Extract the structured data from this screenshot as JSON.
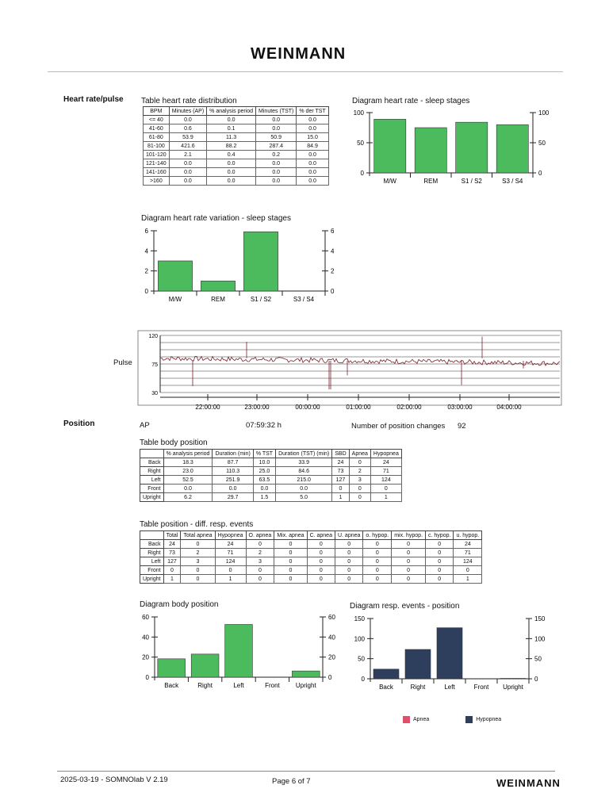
{
  "header": {
    "logo": "WEINMANN"
  },
  "footer": {
    "left": "2025-03-19 - SOMNOlab V 2.19",
    "center": "Page 6 of 7",
    "logo": "WEINMANN"
  },
  "sections": {
    "heart_rate": "Heart rate/pulse",
    "pulse": "Pulse",
    "position": "Position"
  },
  "hr_table": {
    "title": "Table heart rate distribution",
    "headers": [
      "BPM",
      "Minutes (AP)",
      "% analysis period",
      "Minutes (TST)",
      "% der TST"
    ],
    "rows": [
      [
        "<= 40",
        "0.0",
        "0.0",
        "0.0",
        "0.0"
      ],
      [
        "41-60",
        "0.6",
        "0.1",
        "0.0",
        "0.0"
      ],
      [
        "61-80",
        "53.9",
        "11.3",
        "50.9",
        "15.0"
      ],
      [
        "81-100",
        "421.6",
        "88.2",
        "287.4",
        "84.9"
      ],
      [
        "101-120",
        "2.1",
        "0.4",
        "0.2",
        "0.0"
      ],
      [
        "121-140",
        "0.0",
        "0.0",
        "0.0",
        "0.0"
      ],
      [
        "141-160",
        "0.0",
        "0.0",
        "0.0",
        "0.0"
      ],
      [
        ">160",
        "0.0",
        "0.0",
        "0.0",
        "0.0"
      ]
    ]
  },
  "position_info": {
    "ap_label": "AP",
    "ap_value": "07:59:32 h",
    "changes_label": "Number of position changes",
    "changes_value": "92"
  },
  "body_table": {
    "title": "Table body position",
    "headers": [
      "",
      "% analysis period",
      "Duration (min)",
      "% TST",
      "Duration (TST) (min)",
      "SBD",
      "Apnea",
      "Hypopnea"
    ],
    "rows": [
      [
        "Back",
        "18.3",
        "87.7",
        "10.0",
        "33.9",
        "24",
        "0",
        "24"
      ],
      [
        "Right",
        "23.0",
        "110.3",
        "25.0",
        "84.6",
        "73",
        "2",
        "71"
      ],
      [
        "Left",
        "52.5",
        "251.9",
        "63.5",
        "215.0",
        "127",
        "3",
        "124"
      ],
      [
        "Front",
        "0.0",
        "0.0",
        "0.0",
        "0.0",
        "0",
        "0",
        "0"
      ],
      [
        "Upright",
        "6.2",
        "29.7",
        "1.5",
        "5.0",
        "1",
        "0",
        "1"
      ]
    ]
  },
  "resp_table": {
    "title": "Table position - diff. resp. events",
    "headers": [
      "",
      "Total",
      "Total apnea",
      "Hypopnea",
      "O. apnea",
      "Mix. apnea",
      "C. apnea",
      "U. apnea",
      "o. hypop.",
      "mix. hypop.",
      "c. hypop.",
      "u. hypop."
    ],
    "rows": [
      [
        "Back",
        "24",
        "0",
        "24",
        "0",
        "0",
        "0",
        "0",
        "0",
        "0",
        "0",
        "24"
      ],
      [
        "Right",
        "73",
        "2",
        "71",
        "2",
        "0",
        "0",
        "0",
        "0",
        "0",
        "0",
        "71"
      ],
      [
        "Left",
        "127",
        "3",
        "124",
        "3",
        "0",
        "0",
        "0",
        "0",
        "0",
        "0",
        "124"
      ],
      [
        "Front",
        "0",
        "0",
        "0",
        "0",
        "0",
        "0",
        "0",
        "0",
        "0",
        "0",
        "0"
      ],
      [
        "Upright",
        "1",
        "0",
        "1",
        "0",
        "0",
        "0",
        "0",
        "0",
        "0",
        "0",
        "1"
      ]
    ]
  },
  "legend": {
    "apnea": "Apnea",
    "hypopnea": "Hypopnea",
    "apnea_color": "#e0506a",
    "hypopnea_color": "#2e3f5e"
  },
  "chart_data": [
    {
      "id": "hr_stages",
      "type": "bar",
      "title": "Diagram heart rate  - sleep stages",
      "categories": [
        "M/W",
        "REM",
        "S1 / S2",
        "S3 / S4"
      ],
      "values": [
        89,
        75,
        84,
        80
      ],
      "ylim": [
        0,
        100
      ],
      "yticks": [
        0,
        50,
        100
      ],
      "color": "#4cbb5e"
    },
    {
      "id": "hrv_stages",
      "type": "bar",
      "title": "Diagram heart rate variation - sleep stages",
      "categories": [
        "M/W",
        "REM",
        "S1 / S2",
        "S3 / S4"
      ],
      "values": [
        3.0,
        1.0,
        5.9,
        0
      ],
      "ylim": [
        0,
        6
      ],
      "yticks": [
        0,
        2,
        4,
        6
      ],
      "color": "#4cbb5e"
    },
    {
      "id": "pulse",
      "type": "line",
      "title": "",
      "ylim": [
        30,
        120
      ],
      "yticks": [
        30,
        75,
        120
      ],
      "xticks": [
        "22:00:00",
        "23:00:00",
        "00:00:00",
        "01:00:00",
        "02:00:00",
        "03:00:00",
        "04:00:00"
      ],
      "baseline": 84,
      "color": "#7a1f2a"
    },
    {
      "id": "body_pos",
      "type": "bar",
      "title": "Diagram body position",
      "categories": [
        "Back",
        "Right",
        "Left",
        "Front",
        "Upright"
      ],
      "values": [
        18.3,
        23.0,
        52.5,
        0.0,
        6.2
      ],
      "ylim": [
        0,
        60
      ],
      "yticks": [
        0,
        20,
        40,
        60
      ],
      "color": "#4cbb5e"
    },
    {
      "id": "resp_pos",
      "type": "bar",
      "title": "Diagram resp. events - position",
      "categories": [
        "Back",
        "Right",
        "Left",
        "Front",
        "Upright"
      ],
      "series": [
        {
          "name": "Apnea",
          "values": [
            0,
            2,
            3,
            0,
            0
          ]
        },
        {
          "name": "Hypopnea",
          "values": [
            24,
            71,
            124,
            0,
            1
          ]
        }
      ],
      "ylim": [
        0,
        150
      ],
      "yticks": [
        0,
        50,
        100,
        150
      ],
      "color": "#2e3f5e"
    }
  ]
}
